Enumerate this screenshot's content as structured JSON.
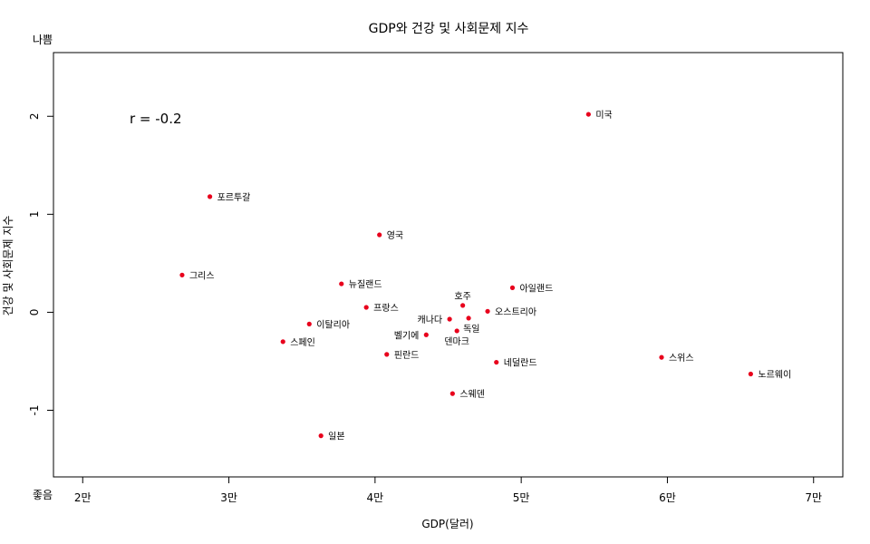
{
  "chart_data": {
    "type": "scatter",
    "title": "GDP와 건강 및 사회문제 지수",
    "xlabel": "GDP(달러)",
    "ylabel": "건강 및 사회문제 지수",
    "y_top_label": "나쁨",
    "y_bottom_label": "좋음",
    "annotation": "r = -0.2",
    "xlim": [
      18000,
      72000
    ],
    "ylim": [
      -1.68,
      2.65
    ],
    "x_ticks": [
      {
        "value": 20000,
        "label": "2만"
      },
      {
        "value": 30000,
        "label": "3만"
      },
      {
        "value": 40000,
        "label": "4만"
      },
      {
        "value": 50000,
        "label": "5만"
      },
      {
        "value": 60000,
        "label": "6만"
      },
      {
        "value": 70000,
        "label": "7만"
      }
    ],
    "y_ticks": [
      {
        "value": -1,
        "label": "-1"
      },
      {
        "value": 0,
        "label": "0"
      },
      {
        "value": 1,
        "label": "1"
      },
      {
        "value": 2,
        "label": "2"
      }
    ],
    "grid": false,
    "point_color": "#e8001c",
    "points": [
      {
        "label": "미국",
        "x": 54600,
        "y": 2.02,
        "pos": "right"
      },
      {
        "label": "포르투갈",
        "x": 28700,
        "y": 1.18,
        "pos": "right"
      },
      {
        "label": "영국",
        "x": 40300,
        "y": 0.79,
        "pos": "right"
      },
      {
        "label": "그리스",
        "x": 26800,
        "y": 0.38,
        "pos": "right"
      },
      {
        "label": "뉴질랜드",
        "x": 37700,
        "y": 0.29,
        "pos": "right"
      },
      {
        "label": "아일랜드",
        "x": 49400,
        "y": 0.25,
        "pos": "right"
      },
      {
        "label": "프랑스",
        "x": 39400,
        "y": 0.05,
        "pos": "right"
      },
      {
        "label": "호주",
        "x": 46000,
        "y": 0.07,
        "pos": "above"
      },
      {
        "label": "오스트리아",
        "x": 47700,
        "y": 0.01,
        "pos": "right"
      },
      {
        "label": "캐나다",
        "x": 45100,
        "y": -0.07,
        "pos": "left"
      },
      {
        "label": "독일",
        "x": 46400,
        "y": -0.06,
        "pos": "below-right"
      },
      {
        "label": "이탈리아",
        "x": 35500,
        "y": -0.12,
        "pos": "right"
      },
      {
        "label": "벨기에",
        "x": 43500,
        "y": -0.23,
        "pos": "left"
      },
      {
        "label": "덴마크",
        "x": 45600,
        "y": -0.19,
        "pos": "below"
      },
      {
        "label": "스페인",
        "x": 33700,
        "y": -0.3,
        "pos": "right"
      },
      {
        "label": "핀란드",
        "x": 40800,
        "y": -0.43,
        "pos": "right"
      },
      {
        "label": "네덜란드",
        "x": 48300,
        "y": -0.51,
        "pos": "right"
      },
      {
        "label": "스위스",
        "x": 59600,
        "y": -0.46,
        "pos": "right"
      },
      {
        "label": "노르웨이",
        "x": 65700,
        "y": -0.63,
        "pos": "right"
      },
      {
        "label": "스웨덴",
        "x": 45300,
        "y": -0.83,
        "pos": "right"
      },
      {
        "label": "일본",
        "x": 36300,
        "y": -1.26,
        "pos": "right"
      }
    ]
  }
}
